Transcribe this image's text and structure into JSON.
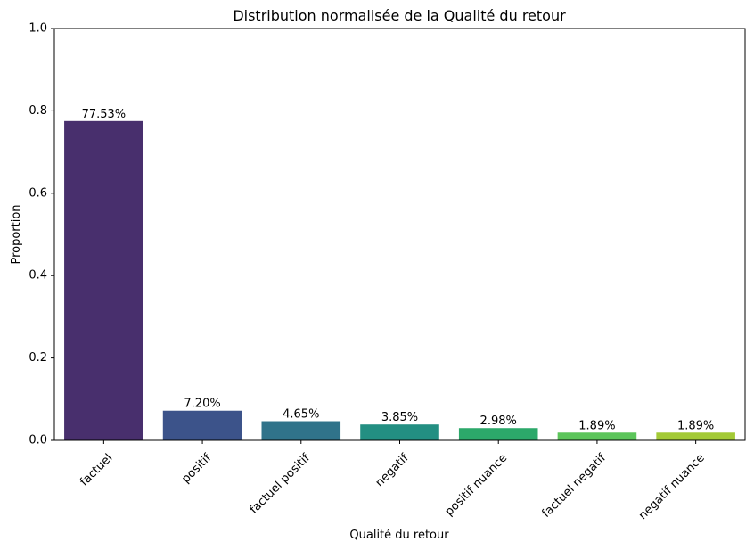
{
  "chart_data": {
    "type": "bar",
    "title": "Distribution normalisée de la Qualité du retour",
    "xlabel": "Qualité du retour",
    "ylabel": "Proportion",
    "ylim": [
      0,
      1.0
    ],
    "yticks": [
      0.0,
      0.2,
      0.4,
      0.6,
      0.8,
      1.0
    ],
    "ytick_labels": [
      "0.0",
      "0.2",
      "0.4",
      "0.6",
      "0.8",
      "1.0"
    ],
    "grid": false,
    "categories": [
      "factuel",
      "positif",
      "factuel positif",
      "negatif",
      "positif nuance",
      "factuel negatif",
      "negatif nuance"
    ],
    "values": [
      0.7753,
      0.072,
      0.0465,
      0.0385,
      0.0298,
      0.0189,
      0.0189
    ],
    "data_labels": [
      "77.53%",
      "7.20%",
      "4.65%",
      "3.85%",
      "2.98%",
      "1.89%",
      "1.89%"
    ],
    "colors": [
      "#482f6d",
      "#3c538a",
      "#30738a",
      "#238f82",
      "#2ca86a",
      "#5cc55a",
      "#a3ca36"
    ]
  }
}
